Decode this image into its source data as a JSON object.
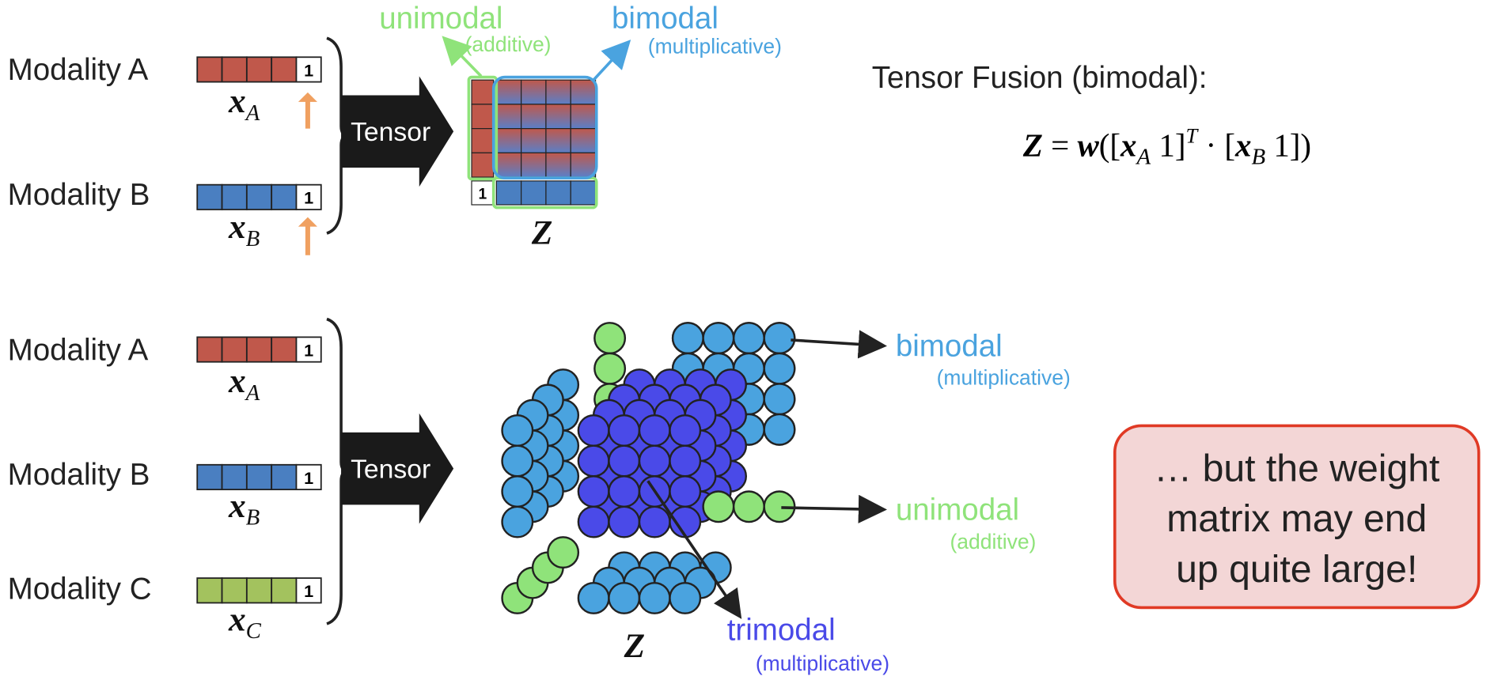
{
  "top": {
    "modality_a": "Modality A",
    "modality_b": "Modality B",
    "x_a": {
      "symbol": "x",
      "subscript": "A"
    },
    "x_b": {
      "symbol": "x",
      "subscript": "B"
    },
    "vector_one": "1",
    "tensor_label": "Tensor",
    "unimodal": {
      "label": "unimodal",
      "note": "(additive)"
    },
    "bimodal": {
      "label": "bimodal",
      "note": "(multiplicative)"
    },
    "z": "Z",
    "fusion_title": "Tensor Fusion (bimodal):",
    "equation": [
      {
        "text": "Z",
        "style": "bold"
      },
      {
        "text": " = ",
        "style": "normal"
      },
      {
        "text": "w",
        "style": "bold"
      },
      {
        "text": "([",
        "style": "normal"
      },
      {
        "text": "x",
        "style": "bold"
      },
      {
        "text": "A",
        "style": "sub"
      },
      {
        "text": "    1]",
        "style": "normal"
      },
      {
        "text": "T",
        "style": "sup"
      },
      {
        "text": " · [",
        "style": "normal"
      },
      {
        "text": "x",
        "style": "bold"
      },
      {
        "text": "B",
        "style": "sub"
      },
      {
        "text": "    1])",
        "style": "normal"
      }
    ]
  },
  "bottom": {
    "modality_a": "Modality A",
    "modality_b": "Modality B",
    "modality_c": "Modality C",
    "x_a": {
      "symbol": "x",
      "subscript": "A"
    },
    "x_b": {
      "symbol": "x",
      "subscript": "B"
    },
    "x_c": {
      "symbol": "x",
      "subscript": "C"
    },
    "vector_one": "1",
    "tensor_label": "Tensor",
    "bimodal": {
      "label": "bimodal",
      "note": "(multiplicative)"
    },
    "unimodal": {
      "label": "unimodal",
      "note": "(additive)"
    },
    "trimodal": {
      "label": "trimodal",
      "note": "(multiplicative)"
    },
    "z": "Z"
  },
  "callout": {
    "lines": [
      "… but the weight",
      "matrix may end",
      "up quite large!"
    ]
  }
}
